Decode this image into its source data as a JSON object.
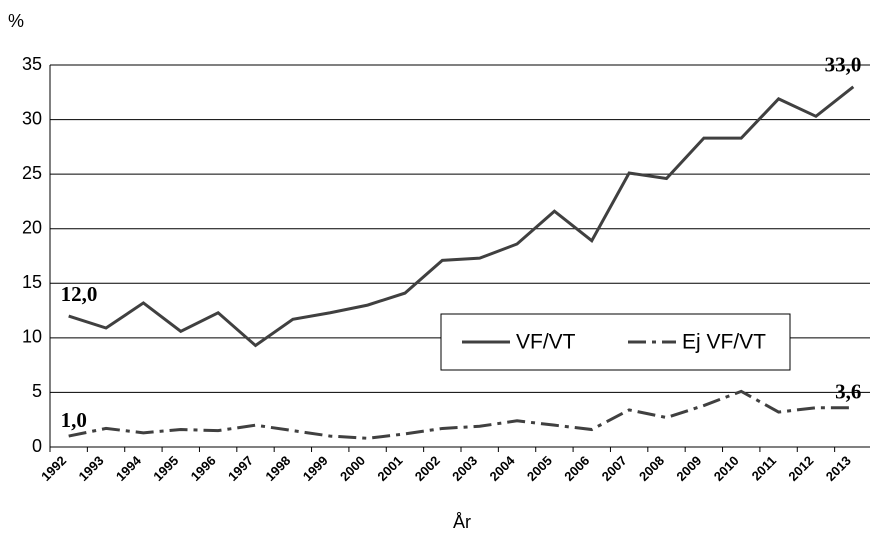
{
  "chart_data": {
    "type": "line",
    "y_label": "%",
    "x_label": "År",
    "categories": [
      "1992",
      "1993",
      "1994",
      "1995",
      "1996",
      "1997",
      "1998",
      "1999",
      "2000",
      "2001",
      "2002",
      "2003",
      "2004",
      "2005",
      "2006",
      "2007",
      "2008",
      "2009",
      "2010",
      "2011",
      "2012",
      "2013"
    ],
    "series": [
      {
        "name": "VF/VT",
        "color": "#404040",
        "dash": "solid",
        "values": [
          12.0,
          10.9,
          13.2,
          10.6,
          12.3,
          9.3,
          11.7,
          12.3,
          13.0,
          14.1,
          17.1,
          17.3,
          18.6,
          21.6,
          18.9,
          25.1,
          24.6,
          28.3,
          28.3,
          31.9,
          30.3,
          33.0
        ],
        "value_labels": [
          "12,0",
          null,
          null,
          null,
          null,
          null,
          null,
          null,
          null,
          null,
          null,
          null,
          null,
          null,
          null,
          null,
          null,
          null,
          null,
          null,
          null,
          "33,0"
        ]
      },
      {
        "name": "Ej VF/VT",
        "color": "#404040",
        "dash": "dashdot",
        "values": [
          1.0,
          1.7,
          1.3,
          1.6,
          1.5,
          2.0,
          1.5,
          1.0,
          0.8,
          1.2,
          1.7,
          1.9,
          2.4,
          2.0,
          1.6,
          3.4,
          2.7,
          3.8,
          5.1,
          3.2,
          3.6,
          3.6
        ],
        "value_labels": [
          "1,0",
          null,
          null,
          null,
          null,
          null,
          null,
          null,
          null,
          null,
          null,
          null,
          null,
          null,
          null,
          null,
          null,
          null,
          null,
          null,
          null,
          "3,6"
        ]
      }
    ],
    "ylim": [
      0,
      35
    ],
    "yticks": [
      0,
      5,
      10,
      15,
      20,
      25,
      30,
      35
    ],
    "grid": true
  }
}
